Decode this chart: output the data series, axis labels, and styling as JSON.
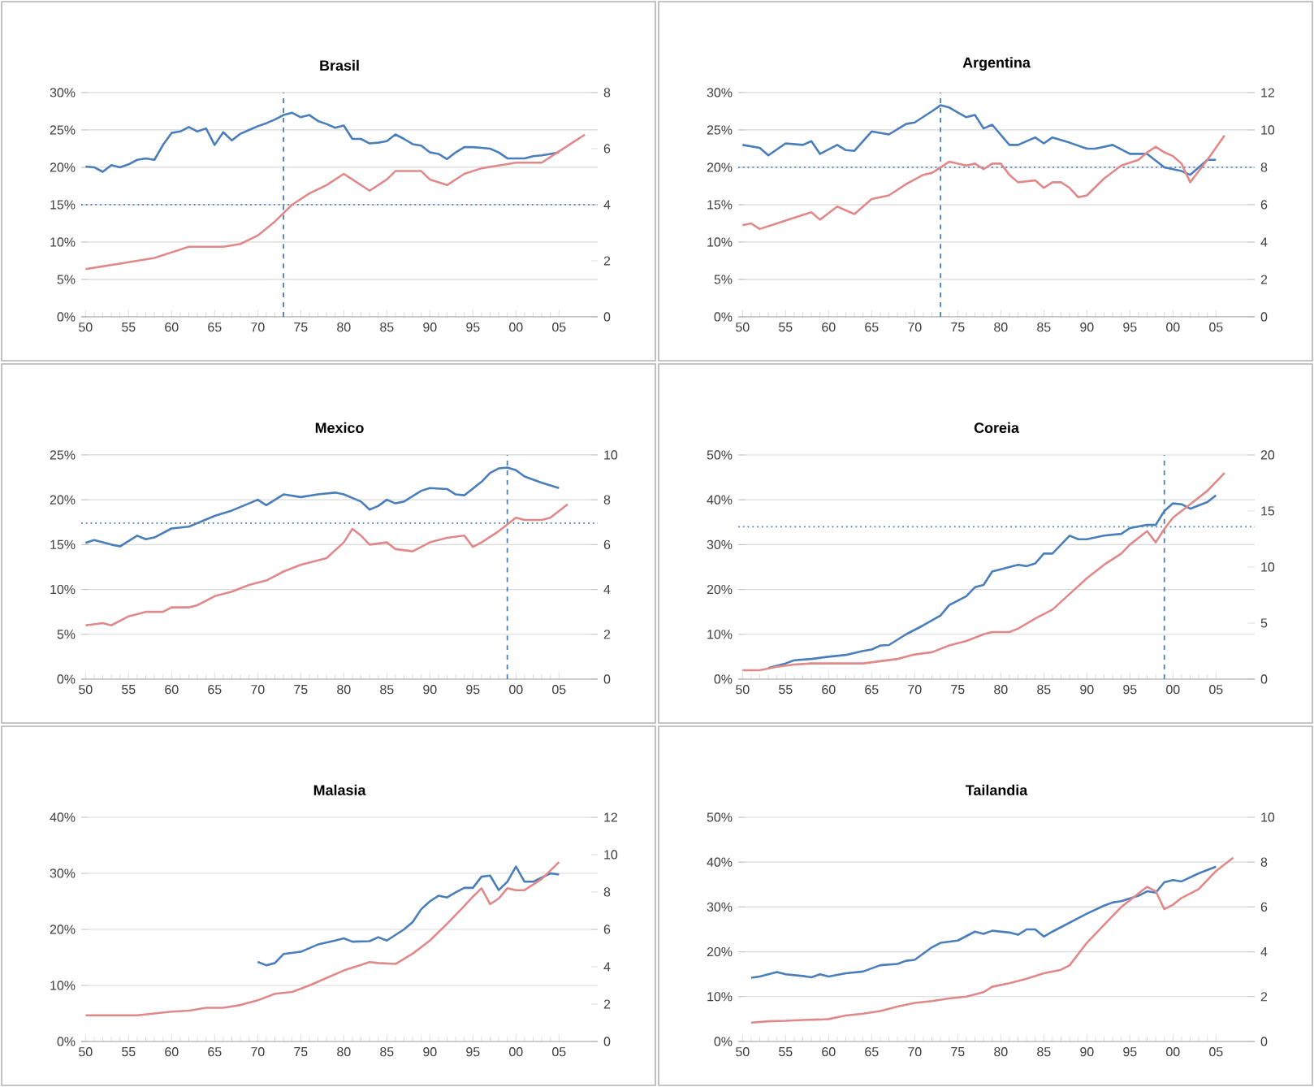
{
  "chart_data": [
    {
      "type": "line",
      "title": "Brasil",
      "xlim": [
        1949.5,
        2009.5
      ],
      "xticks": [
        {
          "value": 1950,
          "label": "50"
        },
        {
          "value": 1955,
          "label": "55"
        },
        {
          "value": 1960,
          "label": "60"
        },
        {
          "value": 1965,
          "label": "65"
        },
        {
          "value": 1970,
          "label": "70"
        },
        {
          "value": 1975,
          "label": "75"
        },
        {
          "value": 1980,
          "label": "80"
        },
        {
          "value": 1985,
          "label": "85"
        },
        {
          "value": 1990,
          "label": "90"
        },
        {
          "value": 1995,
          "label": "95"
        },
        {
          "value": 2000,
          "label": "00"
        },
        {
          "value": 2005,
          "label": "05"
        }
      ],
      "ylim": [
        0,
        30
      ],
      "yticks": [
        {
          "value": 0,
          "label": "0%"
        },
        {
          "value": 5,
          "label": "5%"
        },
        {
          "value": 10,
          "label": "10%"
        },
        {
          "value": 15,
          "label": "15%"
        },
        {
          "value": 20,
          "label": "20%"
        },
        {
          "value": 25,
          "label": "25%"
        },
        {
          "value": 30,
          "label": "30%"
        }
      ],
      "y2lim": [
        0,
        8
      ],
      "y2ticks": [
        0,
        2,
        4,
        6,
        8
      ],
      "grid": "y",
      "ref_lines": [
        {
          "axis": "y",
          "value": 15,
          "color": "#4a7ebb",
          "line_style": "dotted"
        },
        {
          "axis": "x",
          "value": 1973,
          "color": "#4a7ebb",
          "line_style": "dashed"
        }
      ],
      "series": [
        {
          "color": "#4a7ebb",
          "x": [
            1950,
            1951,
            1952,
            1953,
            1954,
            1955,
            1956,
            1957,
            1958,
            1959,
            1960,
            1961,
            1962,
            1963,
            1964,
            1965,
            1966,
            1967,
            1968,
            1969,
            1970,
            1971,
            1972,
            1973,
            1974,
            1975,
            1976,
            1977,
            1978,
            1979,
            1980,
            1981,
            1982,
            1983,
            1984,
            1985,
            1986,
            1987,
            1988,
            1989,
            1990,
            1991,
            1992,
            1993,
            1994,
            1995,
            1996,
            1997,
            1998,
            1999,
            2000,
            2001,
            2002,
            2003,
            2004,
            2005
          ],
          "values": [
            20.1,
            20.0,
            19.4,
            20.3,
            20.0,
            20.4,
            21.0,
            21.2,
            21.0,
            23.0,
            24.6,
            24.8,
            25.4,
            24.8,
            25.2,
            23.0,
            24.7,
            23.6,
            24.5,
            25.0,
            25.5,
            25.9,
            26.4,
            27.0,
            27.3,
            26.7,
            27.0,
            26.2,
            25.8,
            25.3,
            25.6,
            23.8,
            23.8,
            23.2,
            23.3,
            23.5,
            24.4,
            23.8,
            23.1,
            22.9,
            22.0,
            21.8,
            21.1,
            22.0,
            22.7,
            22.7,
            22.6,
            22.5,
            22.0,
            21.2,
            21.2,
            21.2,
            21.5,
            21.6,
            21.8,
            22.0
          ]
        },
        {
          "color": "#e0898a",
          "axis": "y2",
          "x": [
            1950,
            1952,
            1954,
            1956,
            1958,
            1960,
            1962,
            1964,
            1966,
            1968,
            1970,
            1972,
            1974,
            1976,
            1978,
            1980,
            1981,
            1983,
            1985,
            1986,
            1988,
            1989,
            1990,
            1992,
            1994,
            1996,
            1998,
            2000,
            2002,
            2003,
            2005,
            2007,
            2008
          ],
          "values": [
            1.7,
            1.8,
            1.9,
            2.0,
            2.1,
            2.3,
            2.5,
            2.5,
            2.5,
            2.6,
            2.9,
            3.4,
            4.0,
            4.4,
            4.7,
            5.1,
            4.9,
            4.5,
            4.9,
            5.2,
            5.2,
            5.2,
            4.9,
            4.7,
            5.1,
            5.3,
            5.4,
            5.5,
            5.5,
            5.5,
            5.9,
            6.3,
            6.5
          ]
        }
      ]
    },
    {
      "type": "line",
      "title": "Argentina",
      "xlim": [
        1949.5,
        2009.5
      ],
      "xticks": [
        {
          "value": 1950,
          "label": "50"
        },
        {
          "value": 1955,
          "label": "55"
        },
        {
          "value": 1960,
          "label": "60"
        },
        {
          "value": 1965,
          "label": "65"
        },
        {
          "value": 1970,
          "label": "70"
        },
        {
          "value": 1975,
          "label": "75"
        },
        {
          "value": 1980,
          "label": "80"
        },
        {
          "value": 1985,
          "label": "85"
        },
        {
          "value": 1990,
          "label": "90"
        },
        {
          "value": 1995,
          "label": "95"
        },
        {
          "value": 2000,
          "label": "00"
        },
        {
          "value": 2005,
          "label": "05"
        }
      ],
      "ylim": [
        0,
        30
      ],
      "yticks": [
        {
          "value": 0,
          "label": "0%"
        },
        {
          "value": 5,
          "label": "5%"
        },
        {
          "value": 10,
          "label": "10%"
        },
        {
          "value": 15,
          "label": "15%"
        },
        {
          "value": 20,
          "label": "20%"
        },
        {
          "value": 25,
          "label": "25%"
        },
        {
          "value": 30,
          "label": "30%"
        }
      ],
      "y2lim": [
        0,
        12
      ],
      "y2ticks": [
        0,
        2,
        4,
        6,
        8,
        10,
        12
      ],
      "grid": "y",
      "ref_lines": [
        {
          "axis": "y",
          "value": 20,
          "color": "#4a7ebb",
          "line_style": "dotted"
        },
        {
          "axis": "x",
          "value": 1973,
          "color": "#4a7ebb",
          "line_style": "dashed"
        }
      ],
      "series": [
        {
          "color": "#4a7ebb",
          "x": [
            1950,
            1952,
            1953,
            1955,
            1957,
            1958,
            1959,
            1961,
            1962,
            1963,
            1965,
            1967,
            1969,
            1970,
            1972,
            1973,
            1974,
            1976,
            1977,
            1978,
            1979,
            1981,
            1982,
            1984,
            1985,
            1986,
            1988,
            1990,
            1991,
            1993,
            1995,
            1997,
            1999,
            2001,
            2002,
            2004,
            2005
          ],
          "values": [
            23.0,
            22.6,
            21.6,
            23.2,
            23.0,
            23.5,
            21.8,
            23.0,
            22.3,
            22.2,
            24.8,
            24.4,
            25.8,
            26.0,
            27.5,
            28.3,
            28.0,
            26.7,
            27.0,
            25.2,
            25.7,
            23.0,
            23.0,
            24.0,
            23.2,
            24.0,
            23.3,
            22.5,
            22.5,
            23.0,
            21.8,
            21.8,
            20.0,
            19.5,
            19.0,
            21.0,
            21.0
          ]
        },
        {
          "color": "#e0898a",
          "axis": "y2",
          "x": [
            1950,
            1951,
            1952,
            1954,
            1956,
            1958,
            1959,
            1961,
            1963,
            1965,
            1967,
            1969,
            1971,
            1972,
            1974,
            1976,
            1977,
            1978,
            1979,
            1980,
            1981,
            1982,
            1984,
            1985,
            1986,
            1987,
            1988,
            1989,
            1990,
            1992,
            1994,
            1996,
            1997,
            1998,
            1999,
            2000,
            2001,
            2002,
            2003,
            2004,
            2006
          ],
          "values": [
            4.9,
            5.0,
            4.7,
            5.0,
            5.3,
            5.6,
            5.2,
            5.9,
            5.5,
            6.3,
            6.5,
            7.1,
            7.6,
            7.7,
            8.3,
            8.1,
            8.2,
            7.9,
            8.2,
            8.2,
            7.6,
            7.2,
            7.3,
            6.9,
            7.2,
            7.2,
            6.9,
            6.4,
            6.5,
            7.4,
            8.1,
            8.4,
            8.8,
            9.1,
            8.8,
            8.6,
            8.2,
            7.2,
            7.8,
            8.4,
            9.7
          ]
        }
      ]
    },
    {
      "type": "line",
      "title": "Mexico",
      "xlim": [
        1949.5,
        2009.5
      ],
      "xticks": [
        {
          "value": 1950,
          "label": "50"
        },
        {
          "value": 1955,
          "label": "55"
        },
        {
          "value": 1960,
          "label": "60"
        },
        {
          "value": 1965,
          "label": "65"
        },
        {
          "value": 1970,
          "label": "70"
        },
        {
          "value": 1975,
          "label": "75"
        },
        {
          "value": 1980,
          "label": "80"
        },
        {
          "value": 1985,
          "label": "85"
        },
        {
          "value": 1990,
          "label": "90"
        },
        {
          "value": 1995,
          "label": "95"
        },
        {
          "value": 2000,
          "label": "00"
        },
        {
          "value": 2005,
          "label": "05"
        }
      ],
      "ylim": [
        0,
        25
      ],
      "yticks": [
        {
          "value": 0,
          "label": "0%"
        },
        {
          "value": 5,
          "label": "5%"
        },
        {
          "value": 10,
          "label": "10%"
        },
        {
          "value": 15,
          "label": "15%"
        },
        {
          "value": 20,
          "label": "20%"
        },
        {
          "value": 25,
          "label": "25%"
        }
      ],
      "y2lim": [
        0,
        10
      ],
      "y2ticks": [
        0,
        2,
        4,
        6,
        8,
        10
      ],
      "grid": "y",
      "ref_lines": [
        {
          "axis": "y",
          "value": 17.4,
          "color": "#4a7ebb",
          "line_style": "dotted"
        },
        {
          "axis": "x",
          "value": 1999,
          "color": "#4a7ebb",
          "line_style": "dashed"
        }
      ],
      "series": [
        {
          "color": "#4a7ebb",
          "x": [
            1950,
            1951,
            1953,
            1954,
            1956,
            1957,
            1958,
            1960,
            1962,
            1963,
            1965,
            1967,
            1969,
            1970,
            1971,
            1972,
            1973,
            1975,
            1977,
            1979,
            1980,
            1982,
            1983,
            1984,
            1985,
            1986,
            1987,
            1989,
            1990,
            1992,
            1993,
            1994,
            1996,
            1997,
            1998,
            1999,
            2000,
            2001,
            2003,
            2004,
            2005
          ],
          "values": [
            15.2,
            15.5,
            15.0,
            14.8,
            16.0,
            15.6,
            15.8,
            16.8,
            17.0,
            17.4,
            18.2,
            18.8,
            19.6,
            20.0,
            19.4,
            20.0,
            20.6,
            20.3,
            20.6,
            20.8,
            20.6,
            19.8,
            18.9,
            19.3,
            20.0,
            19.6,
            19.8,
            21.0,
            21.3,
            21.2,
            20.6,
            20.5,
            22.0,
            23.0,
            23.5,
            23.6,
            23.3,
            22.6,
            21.9,
            21.6,
            21.3
          ]
        },
        {
          "color": "#e0898a",
          "axis": "y2",
          "x": [
            1950,
            1952,
            1953,
            1955,
            1957,
            1959,
            1960,
            1962,
            1963,
            1965,
            1967,
            1969,
            1971,
            1973,
            1975,
            1977,
            1978,
            1980,
            1981,
            1982,
            1983,
            1985,
            1986,
            1988,
            1989,
            1990,
            1992,
            1994,
            1995,
            1996,
            1998,
            1999,
            2000,
            2001,
            2003,
            2004,
            2006
          ],
          "values": [
            2.4,
            2.5,
            2.4,
            2.8,
            3.0,
            3.0,
            3.2,
            3.2,
            3.3,
            3.7,
            3.9,
            4.2,
            4.4,
            4.8,
            5.1,
            5.3,
            5.4,
            6.1,
            6.7,
            6.4,
            6.0,
            6.1,
            5.8,
            5.7,
            5.9,
            6.1,
            6.3,
            6.4,
            5.9,
            6.1,
            6.6,
            6.9,
            7.2,
            7.1,
            7.1,
            7.2,
            7.8
          ]
        }
      ]
    },
    {
      "type": "line",
      "title": "Coreia",
      "xlim": [
        1949.5,
        2009.5
      ],
      "xticks": [
        {
          "value": 1950,
          "label": "50"
        },
        {
          "value": 1955,
          "label": "55"
        },
        {
          "value": 1960,
          "label": "60"
        },
        {
          "value": 1965,
          "label": "65"
        },
        {
          "value": 1970,
          "label": "70"
        },
        {
          "value": 1975,
          "label": "75"
        },
        {
          "value": 1980,
          "label": "80"
        },
        {
          "value": 1985,
          "label": "85"
        },
        {
          "value": 1990,
          "label": "90"
        },
        {
          "value": 1995,
          "label": "95"
        },
        {
          "value": 2000,
          "label": "00"
        },
        {
          "value": 2005,
          "label": "05"
        }
      ],
      "ylim": [
        0,
        50
      ],
      "yticks": [
        {
          "value": 0,
          "label": "0%"
        },
        {
          "value": 10,
          "label": "10%"
        },
        {
          "value": 20,
          "label": "20%"
        },
        {
          "value": 30,
          "label": "30%"
        },
        {
          "value": 40,
          "label": "40%"
        },
        {
          "value": 50,
          "label": "50%"
        }
      ],
      "y2lim": [
        0,
        20
      ],
      "y2ticks": [
        0,
        5,
        10,
        15,
        20
      ],
      "grid": "y",
      "ref_lines": [
        {
          "axis": "y",
          "value": 34,
          "color": "#4a7ebb",
          "line_style": "dotted"
        },
        {
          "axis": "x",
          "value": 1999,
          "color": "#4a7ebb",
          "line_style": "dashed"
        }
      ],
      "series": [
        {
          "color": "#4a7ebb",
          "x": [
            1953,
            1955,
            1956,
            1958,
            1960,
            1962,
            1964,
            1965,
            1966,
            1967,
            1969,
            1971,
            1973,
            1974,
            1976,
            1977,
            1978,
            1979,
            1981,
            1982,
            1983,
            1984,
            1985,
            1986,
            1988,
            1989,
            1990,
            1992,
            1994,
            1995,
            1997,
            1998,
            1999,
            2000,
            2001,
            2002,
            2004,
            2005
          ],
          "values": [
            2.5,
            3.5,
            4.2,
            4.5,
            5.0,
            5.4,
            6.3,
            6.6,
            7.5,
            7.6,
            10.0,
            12.0,
            14.2,
            16.5,
            18.5,
            20.5,
            21.0,
            24.0,
            25.0,
            25.5,
            25.2,
            25.8,
            28.0,
            28.0,
            32.0,
            31.2,
            31.2,
            32.0,
            32.4,
            33.7,
            34.4,
            34.4,
            37.5,
            39.2,
            39.0,
            38.0,
            39.5,
            41.0
          ]
        },
        {
          "color": "#e0898a",
          "axis": "y2",
          "x": [
            1950,
            1952,
            1954,
            1956,
            1958,
            1960,
            1962,
            1964,
            1966,
            1968,
            1970,
            1972,
            1974,
            1976,
            1978,
            1979,
            1981,
            1982,
            1984,
            1986,
            1988,
            1990,
            1992,
            1994,
            1995,
            1997,
            1998,
            1999,
            2000,
            2002,
            2004,
            2006
          ],
          "values": [
            0.8,
            0.8,
            1.1,
            1.3,
            1.4,
            1.4,
            1.4,
            1.4,
            1.6,
            1.8,
            2.2,
            2.4,
            3.0,
            3.4,
            4.0,
            4.2,
            4.2,
            4.5,
            5.4,
            6.2,
            7.6,
            9.0,
            10.2,
            11.2,
            12.0,
            13.2,
            12.2,
            13.4,
            14.4,
            15.6,
            16.8,
            18.4
          ]
        }
      ]
    },
    {
      "type": "line",
      "title": "Malasia",
      "xlim": [
        1949.5,
        2009.5
      ],
      "xticks": [
        {
          "value": 1950,
          "label": "50"
        },
        {
          "value": 1955,
          "label": "55"
        },
        {
          "value": 1960,
          "label": "60"
        },
        {
          "value": 1965,
          "label": "65"
        },
        {
          "value": 1970,
          "label": "70"
        },
        {
          "value": 1975,
          "label": "75"
        },
        {
          "value": 1980,
          "label": "80"
        },
        {
          "value": 1985,
          "label": "85"
        },
        {
          "value": 1990,
          "label": "90"
        },
        {
          "value": 1995,
          "label": "95"
        },
        {
          "value": 2000,
          "label": "00"
        },
        {
          "value": 2005,
          "label": "05"
        }
      ],
      "ylim": [
        0,
        40
      ],
      "yticks": [
        {
          "value": 0,
          "label": "0%"
        },
        {
          "value": 10,
          "label": "10%"
        },
        {
          "value": 20,
          "label": "20%"
        },
        {
          "value": 30,
          "label": "30%"
        },
        {
          "value": 40,
          "label": "40%"
        }
      ],
      "y2lim": [
        0,
        12
      ],
      "y2ticks": [
        0,
        2,
        4,
        6,
        8,
        10,
        12
      ],
      "grid": "y",
      "series": [
        {
          "color": "#4a7ebb",
          "x": [
            1970,
            1971,
            1972,
            1973,
            1975,
            1977,
            1979,
            1980,
            1981,
            1983,
            1984,
            1985,
            1987,
            1988,
            1989,
            1990,
            1991,
            1992,
            1993,
            1994,
            1995,
            1996,
            1997,
            1998,
            1999,
            2000,
            2001,
            2002,
            2004,
            2005
          ],
          "values": [
            14.2,
            13.6,
            14.0,
            15.6,
            16.0,
            17.3,
            18.0,
            18.4,
            17.8,
            17.9,
            18.6,
            18.0,
            20.0,
            21.3,
            23.6,
            25.0,
            26.0,
            25.7,
            26.6,
            27.4,
            27.4,
            29.4,
            29.6,
            27.0,
            28.5,
            31.2,
            28.5,
            28.5,
            30.0,
            29.8
          ]
        },
        {
          "color": "#e0898a",
          "axis": "y2",
          "x": [
            1950,
            1952,
            1954,
            1956,
            1958,
            1960,
            1962,
            1964,
            1966,
            1968,
            1970,
            1972,
            1974,
            1976,
            1978,
            1980,
            1982,
            1983,
            1984,
            1986,
            1988,
            1990,
            1992,
            1994,
            1995,
            1996,
            1997,
            1998,
            1999,
            2000,
            2001,
            2003,
            2005
          ],
          "values": [
            1.4,
            1.4,
            1.4,
            1.4,
            1.5,
            1.6,
            1.65,
            1.8,
            1.8,
            1.95,
            2.2,
            2.55,
            2.65,
            3.0,
            3.4,
            3.8,
            4.1,
            4.25,
            4.2,
            4.15,
            4.7,
            5.4,
            6.3,
            7.25,
            7.75,
            8.2,
            7.35,
            7.65,
            8.2,
            8.1,
            8.1,
            8.7,
            9.6
          ]
        }
      ]
    },
    {
      "type": "line",
      "title": "Tailandia",
      "xlim": [
        1949.5,
        2009.5
      ],
      "xticks": [
        {
          "value": 1950,
          "label": "50"
        },
        {
          "value": 1955,
          "label": "55"
        },
        {
          "value": 1960,
          "label": "60"
        },
        {
          "value": 1965,
          "label": "65"
        },
        {
          "value": 1970,
          "label": "70"
        },
        {
          "value": 1975,
          "label": "75"
        },
        {
          "value": 1980,
          "label": "80"
        },
        {
          "value": 1985,
          "label": "85"
        },
        {
          "value": 1990,
          "label": "90"
        },
        {
          "value": 1995,
          "label": "95"
        },
        {
          "value": 2000,
          "label": "00"
        },
        {
          "value": 2005,
          "label": "05"
        }
      ],
      "ylim": [
        0,
        50
      ],
      "yticks": [
        {
          "value": 0,
          "label": "0%"
        },
        {
          "value": 10,
          "label": "10%"
        },
        {
          "value": 20,
          "label": "20%"
        },
        {
          "value": 30,
          "label": "30%"
        },
        {
          "value": 40,
          "label": "40%"
        },
        {
          "value": 50,
          "label": "50%"
        }
      ],
      "y2lim": [
        0,
        10
      ],
      "y2ticks": [
        0,
        2,
        4,
        6,
        8,
        10
      ],
      "grid": "y",
      "series": [
        {
          "color": "#4a7ebb",
          "x": [
            1951,
            1952,
            1954,
            1955,
            1957,
            1958,
            1959,
            1960,
            1962,
            1964,
            1966,
            1968,
            1969,
            1970,
            1972,
            1973,
            1975,
            1977,
            1978,
            1979,
            1981,
            1982,
            1983,
            1984,
            1985,
            1986,
            1988,
            1990,
            1992,
            1993,
            1994,
            1996,
            1997,
            1998,
            1999,
            2000,
            2001,
            2003,
            2005
          ],
          "values": [
            14.2,
            14.5,
            15.5,
            15.0,
            14.6,
            14.3,
            15.0,
            14.5,
            15.2,
            15.6,
            17.0,
            17.3,
            18.0,
            18.2,
            21.0,
            22.0,
            22.5,
            24.5,
            24.0,
            24.7,
            24.3,
            23.8,
            25.0,
            25.0,
            23.4,
            24.5,
            26.5,
            28.5,
            30.3,
            31.0,
            31.3,
            32.5,
            33.5,
            33.2,
            35.5,
            36.0,
            35.7,
            37.5,
            39.0
          ]
        },
        {
          "color": "#e0898a",
          "axis": "y2",
          "x": [
            1951,
            1953,
            1955,
            1957,
            1959,
            1960,
            1962,
            1964,
            1966,
            1968,
            1970,
            1972,
            1974,
            1976,
            1978,
            1979,
            1981,
            1983,
            1985,
            1987,
            1988,
            1990,
            1992,
            1994,
            1996,
            1997,
            1998,
            1999,
            2000,
            2001,
            2003,
            2005,
            2007
          ],
          "values": [
            0.84,
            0.9,
            0.92,
            0.96,
            0.98,
            1.0,
            1.16,
            1.24,
            1.36,
            1.56,
            1.72,
            1.8,
            1.92,
            2.0,
            2.2,
            2.44,
            2.6,
            2.8,
            3.04,
            3.2,
            3.4,
            4.4,
            5.2,
            6.0,
            6.6,
            6.9,
            6.7,
            5.9,
            6.1,
            6.4,
            6.8,
            7.6,
            8.2
          ]
        }
      ]
    }
  ]
}
